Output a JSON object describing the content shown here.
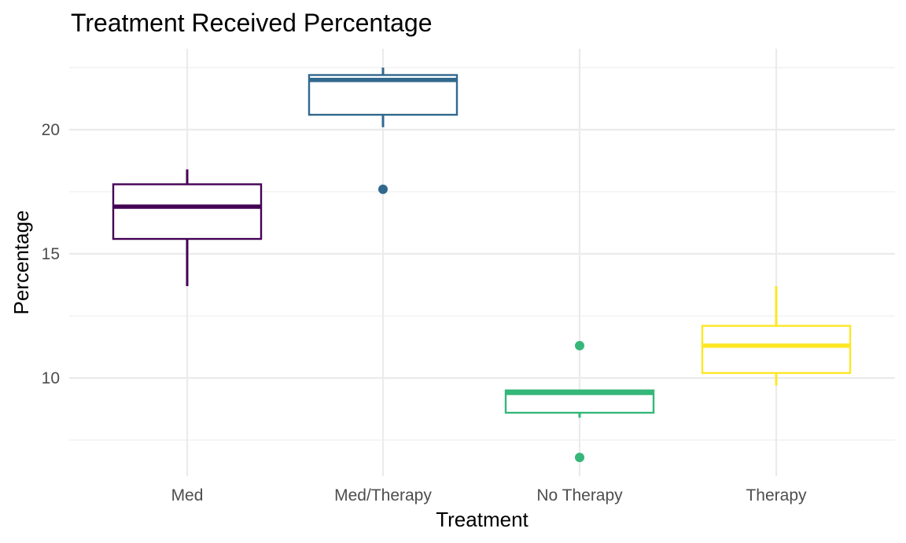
{
  "chart_data": {
    "type": "boxplot",
    "title": "Treatment Received Percentage",
    "xlabel": "Treatment",
    "ylabel": "Percentage",
    "categories": [
      "Med",
      "Med/Therapy",
      "No Therapy",
      "Therapy"
    ],
    "ylim": [
      6.5,
      23
    ],
    "yticks": [
      10,
      15,
      20
    ],
    "grid": true,
    "legend": "none",
    "series": [
      {
        "category": "Med",
        "color": "#440154",
        "whisker_low": 13.7,
        "q1": 15.6,
        "median": 16.9,
        "q3": 17.8,
        "whisker_high": 18.4,
        "outliers": []
      },
      {
        "category": "Med/Therapy",
        "color": "#31688e",
        "whisker_low": 20.1,
        "q1": 20.6,
        "median": 22.0,
        "q3": 22.2,
        "whisker_high": 22.5,
        "outliers": [
          17.6
        ]
      },
      {
        "category": "No Therapy",
        "color": "#35b779",
        "whisker_low": 8.4,
        "q1": 8.6,
        "median": 9.4,
        "q3": 9.5,
        "whisker_high": 9.5,
        "outliers": [
          11.3,
          6.8
        ]
      },
      {
        "category": "Therapy",
        "color": "#fde725",
        "whisker_low": 9.7,
        "q1": 10.2,
        "median": 11.3,
        "q3": 12.1,
        "whisker_high": 13.7,
        "outliers": []
      }
    ]
  }
}
